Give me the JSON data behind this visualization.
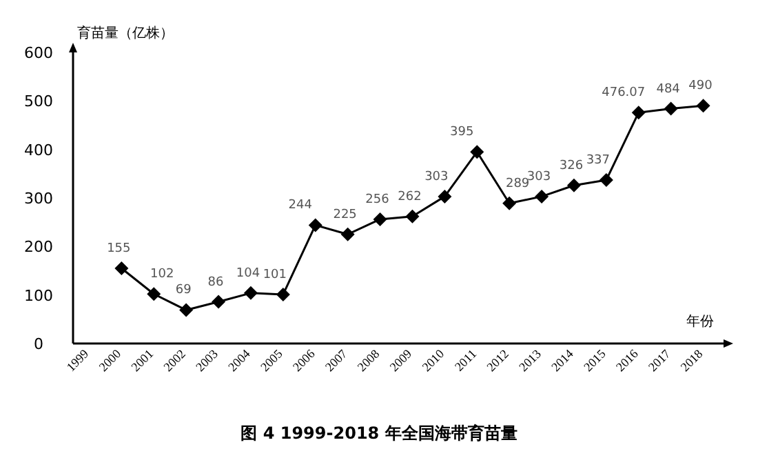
{
  "chart_data": {
    "type": "line",
    "title": "图 4 1999-2018 年全国海带育苗量",
    "ylabel": "育苗量（亿株）",
    "xlabel": "年份",
    "categories": [
      "1999",
      "2000",
      "2001",
      "2002",
      "2003",
      "2004",
      "2005",
      "2006",
      "2007",
      "2008",
      "2009",
      "2010",
      "2011",
      "2012",
      "2013",
      "2014",
      "2015",
      "2016",
      "2017",
      "2018"
    ],
    "values": [
      null,
      155,
      102,
      69,
      86,
      104,
      101,
      244,
      225,
      256,
      262,
      303,
      395,
      289,
      303,
      326,
      337,
      476.07,
      484,
      490
    ],
    "color": "#000000",
    "marker": "diamond",
    "line_style": "solid",
    "data_labels": true,
    "ylim": [
      0,
      600
    ],
    "yticks": [
      0,
      100,
      200,
      300,
      400,
      500,
      600
    ]
  }
}
